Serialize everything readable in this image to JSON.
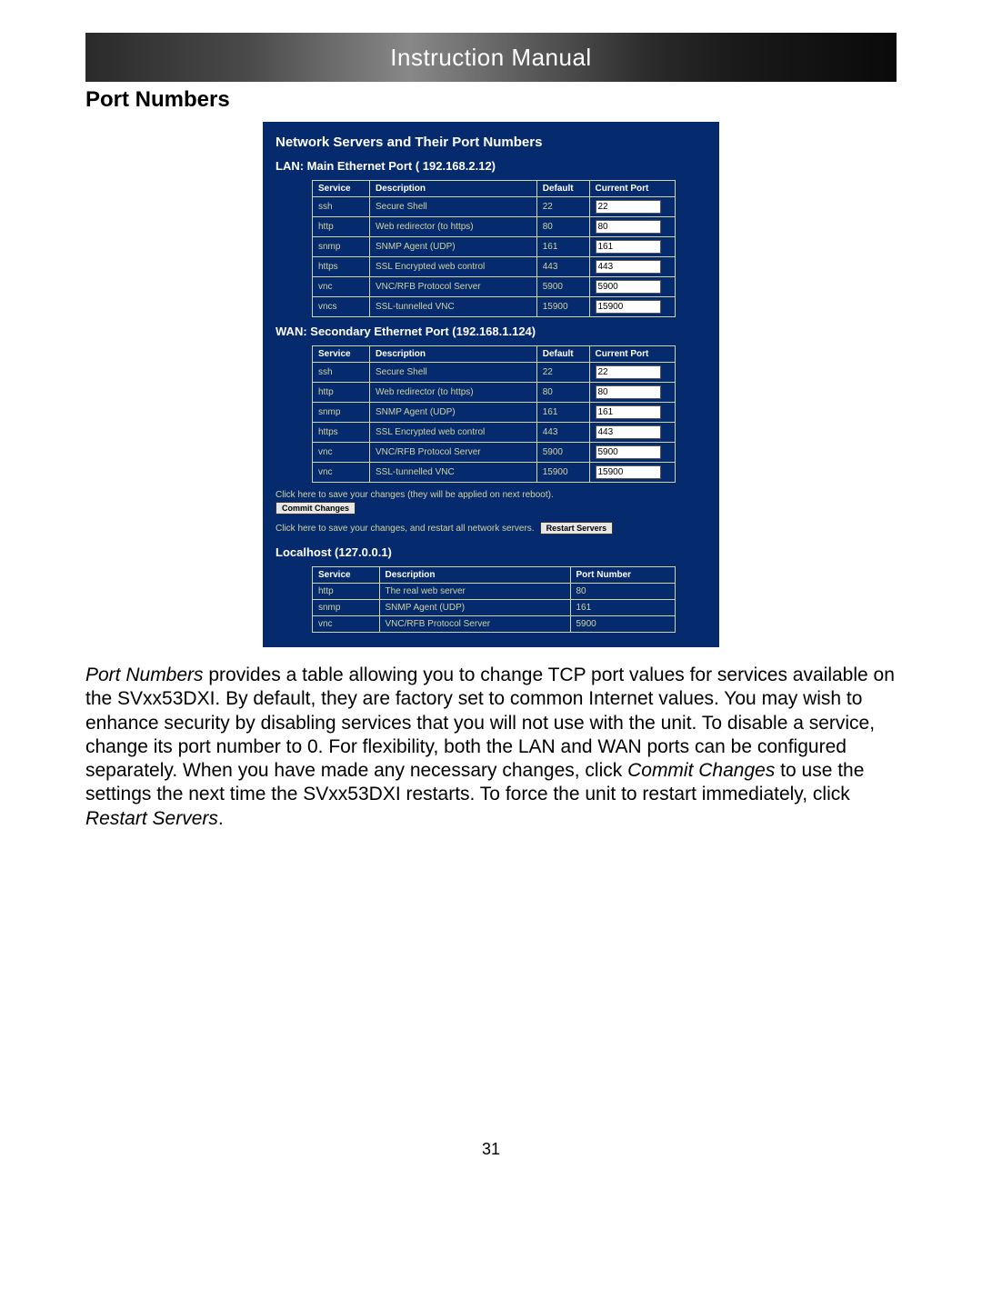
{
  "banner": {
    "title": "Instruction Manual"
  },
  "section": {
    "title": "Port Numbers"
  },
  "panel": {
    "title": "Network Servers and Their Port Numbers",
    "lan": {
      "title": "LAN: Main Ethernet Port ( 192.168.2.12)",
      "columns": {
        "service": "Service",
        "description": "Description",
        "default": "Default",
        "current": "Current Port"
      },
      "rows": [
        {
          "service": "ssh",
          "desc": "Secure Shell",
          "default": "22",
          "current": "22"
        },
        {
          "service": "http",
          "desc": "Web redirector (to https)",
          "default": "80",
          "current": "80"
        },
        {
          "service": "snmp",
          "desc": "SNMP Agent (UDP)",
          "default": "161",
          "current": "161"
        },
        {
          "service": "https",
          "desc": "SSL Encrypted web control",
          "default": "443",
          "current": "443"
        },
        {
          "service": "vnc",
          "desc": "VNC/RFB Protocol Server",
          "default": "5900",
          "current": "5900"
        },
        {
          "service": "vncs",
          "desc": "SSL-tunnelled VNC",
          "default": "15900",
          "current": "15900"
        }
      ]
    },
    "wan": {
      "title": "WAN: Secondary Ethernet Port (192.168.1.124)",
      "columns": {
        "service": "Service",
        "description": "Description",
        "default": "Default",
        "current": "Current Port"
      },
      "rows": [
        {
          "service": "ssh",
          "desc": "Secure Shell",
          "default": "22",
          "current": "22"
        },
        {
          "service": "http",
          "desc": "Web redirector (to https)",
          "default": "80",
          "current": "80"
        },
        {
          "service": "snmp",
          "desc": "SNMP Agent (UDP)",
          "default": "161",
          "current": "161"
        },
        {
          "service": "https",
          "desc": "SSL Encrypted web control",
          "default": "443",
          "current": "443"
        },
        {
          "service": "vnc",
          "desc": "VNC/RFB Protocol Server",
          "default": "5900",
          "current": "5900"
        },
        {
          "service": "vnc",
          "desc": "SSL-tunnelled VNC",
          "default": "15900",
          "current": "15900"
        }
      ]
    },
    "commit_hint": "Click here to save your changes (they will be applied on next reboot).",
    "commit_label": "Commit Changes",
    "restart_hint": "Click here to save your changes, and restart all network servers.",
    "restart_label": "Restart Servers",
    "localhost": {
      "title": "Localhost (127.0.0.1)",
      "columns": {
        "service": "Service",
        "description": "Description",
        "port": "Port Number"
      },
      "rows": [
        {
          "service": "http",
          "desc": "The real web server",
          "port": "80"
        },
        {
          "service": "snmp",
          "desc": "SNMP Agent (UDP)",
          "port": "161"
        },
        {
          "service": "vnc",
          "desc": "VNC/RFB Protocol Server",
          "port": "5900"
        }
      ]
    }
  },
  "body": {
    "p1a": "Port Numbers",
    "p1b": " provides a table allowing you to change TCP port values for services available on the SVxx53DXI. By default, they are factory set to common Internet values. You may wish to enhance security by disabling services that you will not use with the unit. To disable a service, change its port number to 0. For flexibility, both the LAN and WAN ports can be configured separately. When you have made any necessary changes, click ",
    "p1c": "Commit Changes",
    "p1d": " to use the settings the next time the SVxx53DXI restarts. To force the unit to restart immediately, click ",
    "p1e": "Restart Servers",
    "p1f": "."
  },
  "pagenum": "31"
}
